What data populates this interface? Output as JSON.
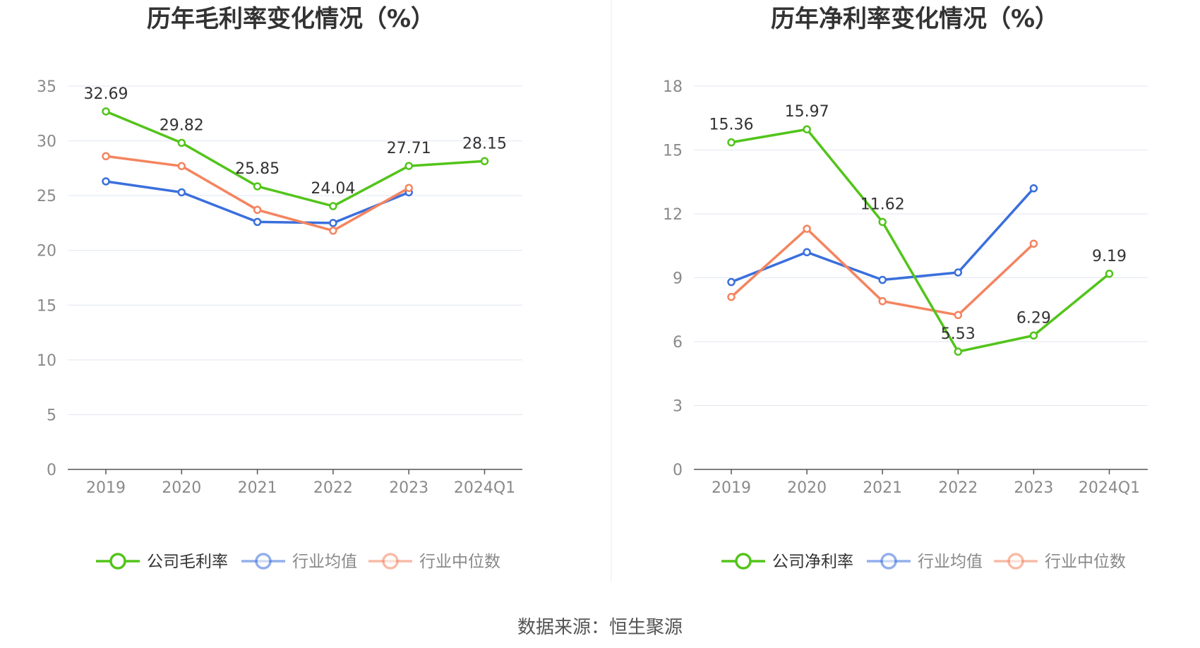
{
  "source": "数据来源：恒生聚源",
  "colors": {
    "company": "#52c41a",
    "avg": "#3a6fdc",
    "median": "#f4845f",
    "grid": "#e1e6f0",
    "axis": "#555555"
  },
  "chart_data": [
    {
      "type": "line",
      "title": "历年毛利率变化情况（%）",
      "categories": [
        "2019",
        "2020",
        "2021",
        "2022",
        "2023",
        "2024Q1"
      ],
      "ylim": [
        0,
        35
      ],
      "yticks": [
        0,
        5,
        10,
        15,
        20,
        25,
        30,
        35
      ],
      "legend": "bottom-center",
      "grid": true,
      "series": [
        {
          "name": "公司毛利率",
          "key": "company",
          "values": [
            32.69,
            29.82,
            25.85,
            24.04,
            27.71,
            28.15
          ],
          "labels": [
            "32.69",
            "29.82",
            "25.85",
            "24.04",
            "27.71",
            "28.15"
          ]
        },
        {
          "name": "行业均值",
          "key": "avg",
          "values": [
            26.3,
            25.3,
            22.6,
            22.5,
            25.3,
            null
          ]
        },
        {
          "name": "行业中位数",
          "key": "median",
          "values": [
            28.6,
            27.7,
            23.7,
            21.8,
            25.7,
            null
          ]
        }
      ]
    },
    {
      "type": "line",
      "title": "历年净利率变化情况（%）",
      "categories": [
        "2019",
        "2020",
        "2021",
        "2022",
        "2023",
        "2024Q1"
      ],
      "ylim": [
        0,
        18
      ],
      "yticks": [
        0,
        3,
        6,
        9,
        12,
        15,
        18
      ],
      "legend": "bottom-center",
      "grid": true,
      "series": [
        {
          "name": "公司净利率",
          "key": "company",
          "values": [
            15.36,
            15.97,
            11.62,
            5.53,
            6.29,
            9.19
          ],
          "labels": [
            "15.36",
            "15.97",
            "11.62",
            "5.53",
            "6.29",
            "9.19"
          ]
        },
        {
          "name": "行业均值",
          "key": "avg",
          "values": [
            8.8,
            10.2,
            8.9,
            9.25,
            13.2,
            null
          ]
        },
        {
          "name": "行业中位数",
          "key": "median",
          "values": [
            8.1,
            11.3,
            7.9,
            7.25,
            10.6,
            null
          ]
        }
      ]
    }
  ]
}
